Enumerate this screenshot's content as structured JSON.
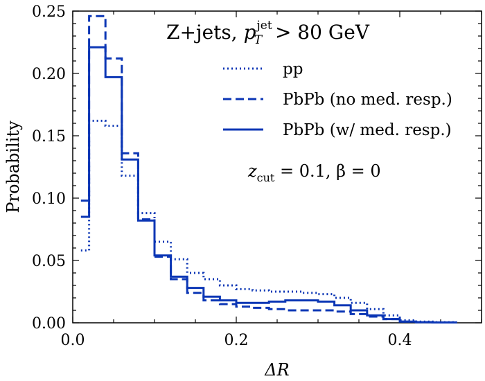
{
  "chart_data": {
    "type": "line",
    "title": "Z+jets, p_T^jet > 80 GeV",
    "title_parts": {
      "prefix": "Z+jets, ",
      "p": "p",
      "sub": "T",
      "sup": "jet",
      "suffix": " > 80 GeV"
    },
    "annotation": "z_cut = 0.1, β = 0",
    "annotation_parts": {
      "z": "z",
      "sub": "cut",
      "rest": " = 0.1, β = 0"
    },
    "xlabel": "ΔR",
    "ylabel": "Probability",
    "xlim": [
      0.0,
      0.5
    ],
    "ylim": [
      0.0,
      0.25
    ],
    "x_ticks": [
      "0.0",
      "0.2",
      "0.4"
    ],
    "y_ticks": [
      "0.00",
      "0.05",
      "0.10",
      "0.15",
      "0.20",
      "0.25"
    ],
    "bin_edges": [
      0.01,
      0.02,
      0.04,
      0.06,
      0.08,
      0.1,
      0.12,
      0.14,
      0.16,
      0.18,
      0.2,
      0.22,
      0.24,
      0.26,
      0.28,
      0.3,
      0.32,
      0.34,
      0.36,
      0.38,
      0.4,
      0.42,
      0.44,
      0.47
    ],
    "series": [
      {
        "name": "pp",
        "style": "dotted",
        "color": "#0b36b5",
        "values": [
          0.058,
          0.162,
          0.158,
          0.118,
          0.088,
          0.065,
          0.051,
          0.04,
          0.035,
          0.03,
          0.027,
          0.026,
          0.025,
          0.025,
          0.024,
          0.023,
          0.02,
          0.016,
          0.011,
          0.006,
          0.002,
          0.001,
          0.0005
        ]
      },
      {
        "name": "PbPb (no med. resp.)",
        "style": "dashed",
        "color": "#0b36b5",
        "values": [
          0.098,
          0.246,
          0.212,
          0.136,
          0.083,
          0.053,
          0.035,
          0.024,
          0.018,
          0.015,
          0.013,
          0.012,
          0.011,
          0.01,
          0.01,
          0.01,
          0.009,
          0.007,
          0.005,
          0.003,
          0.001,
          0.0005,
          0.0003
        ]
      },
      {
        "name": "PbPb (w/ med. resp.)",
        "style": "solid",
        "color": "#0b36b5",
        "values": [
          0.085,
          0.221,
          0.197,
          0.131,
          0.082,
          0.054,
          0.037,
          0.028,
          0.021,
          0.018,
          0.016,
          0.016,
          0.017,
          0.018,
          0.018,
          0.017,
          0.014,
          0.01,
          0.006,
          0.003,
          0.001,
          0.0005,
          0.0003
        ]
      }
    ],
    "legend_position": "top-right"
  }
}
